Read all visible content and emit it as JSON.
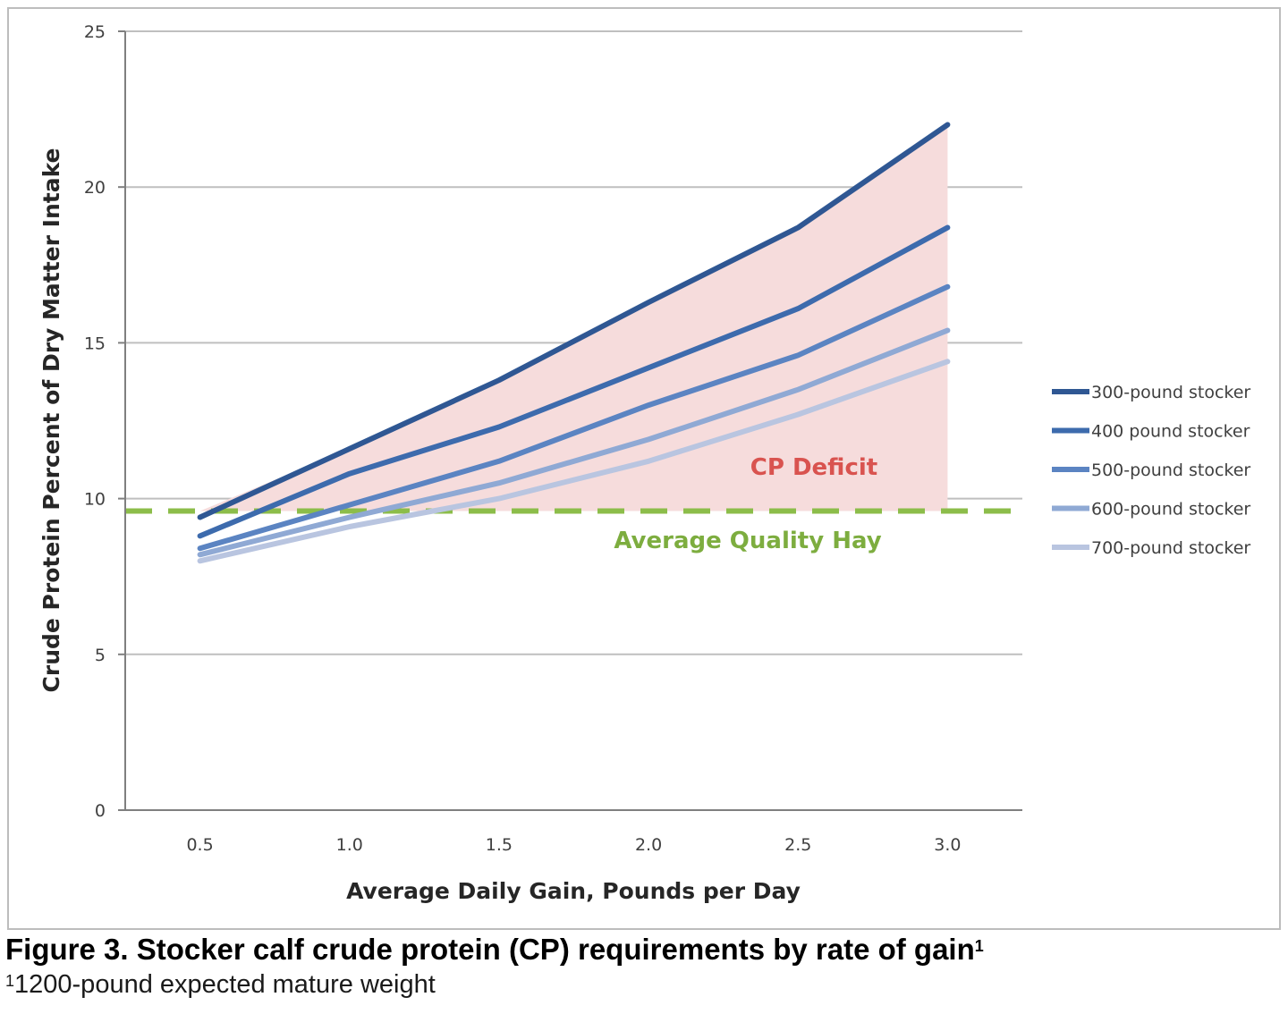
{
  "chart_data": {
    "type": "line",
    "title": "",
    "xlabel": "Average Daily Gain, Pounds per Day",
    "ylabel": "Crude Protein Percent of Dry Matter Intake",
    "x": [
      0.5,
      1.0,
      1.5,
      2.0,
      2.5,
      3.0
    ],
    "x_tick_labels": [
      "0.5",
      "1.0",
      "1.5",
      "2.0",
      "2.5",
      "3.0"
    ],
    "ylim": [
      0,
      25
    ],
    "y_ticks": [
      0,
      5,
      10,
      15,
      20,
      25
    ],
    "grid": "horizontal",
    "legend_position": "right",
    "series": [
      {
        "name": "300-pound stocker",
        "color": "#2f5793",
        "values": [
          9.4,
          11.6,
          13.8,
          16.3,
          18.7,
          22.0
        ]
      },
      {
        "name": "400 pound stocker",
        "color": "#3d6bad",
        "values": [
          8.8,
          10.8,
          12.3,
          14.2,
          16.1,
          18.7
        ]
      },
      {
        "name": "500-pound stocker",
        "color": "#5b84c2",
        "values": [
          8.4,
          9.8,
          11.2,
          13.0,
          14.6,
          16.8
        ]
      },
      {
        "name": "600-pound stocker",
        "color": "#8fa9d4",
        "values": [
          8.2,
          9.4,
          10.5,
          11.9,
          13.5,
          15.4
        ]
      },
      {
        "name": "700-pound stocker",
        "color": "#b9c5e0",
        "values": [
          8.0,
          9.1,
          10.0,
          11.2,
          12.7,
          14.4
        ]
      }
    ],
    "reference_line": {
      "label": "Average Quality Hay",
      "value": 9.6,
      "color": "#8cbd4a",
      "style": "dashed"
    },
    "shaded_region": {
      "label": "CP Deficit",
      "color": "#f6dcdc",
      "x_range": [
        0.5,
        3.0
      ]
    },
    "annotations": [
      "CP Deficit",
      "Average Quality Hay"
    ]
  },
  "caption": {
    "title": "Figure 3. Stocker calf crude protein (CP) requirements by rate of gain",
    "title_sup": "1",
    "note_sup": "1",
    "note": "1200-pound expected mature weight"
  }
}
